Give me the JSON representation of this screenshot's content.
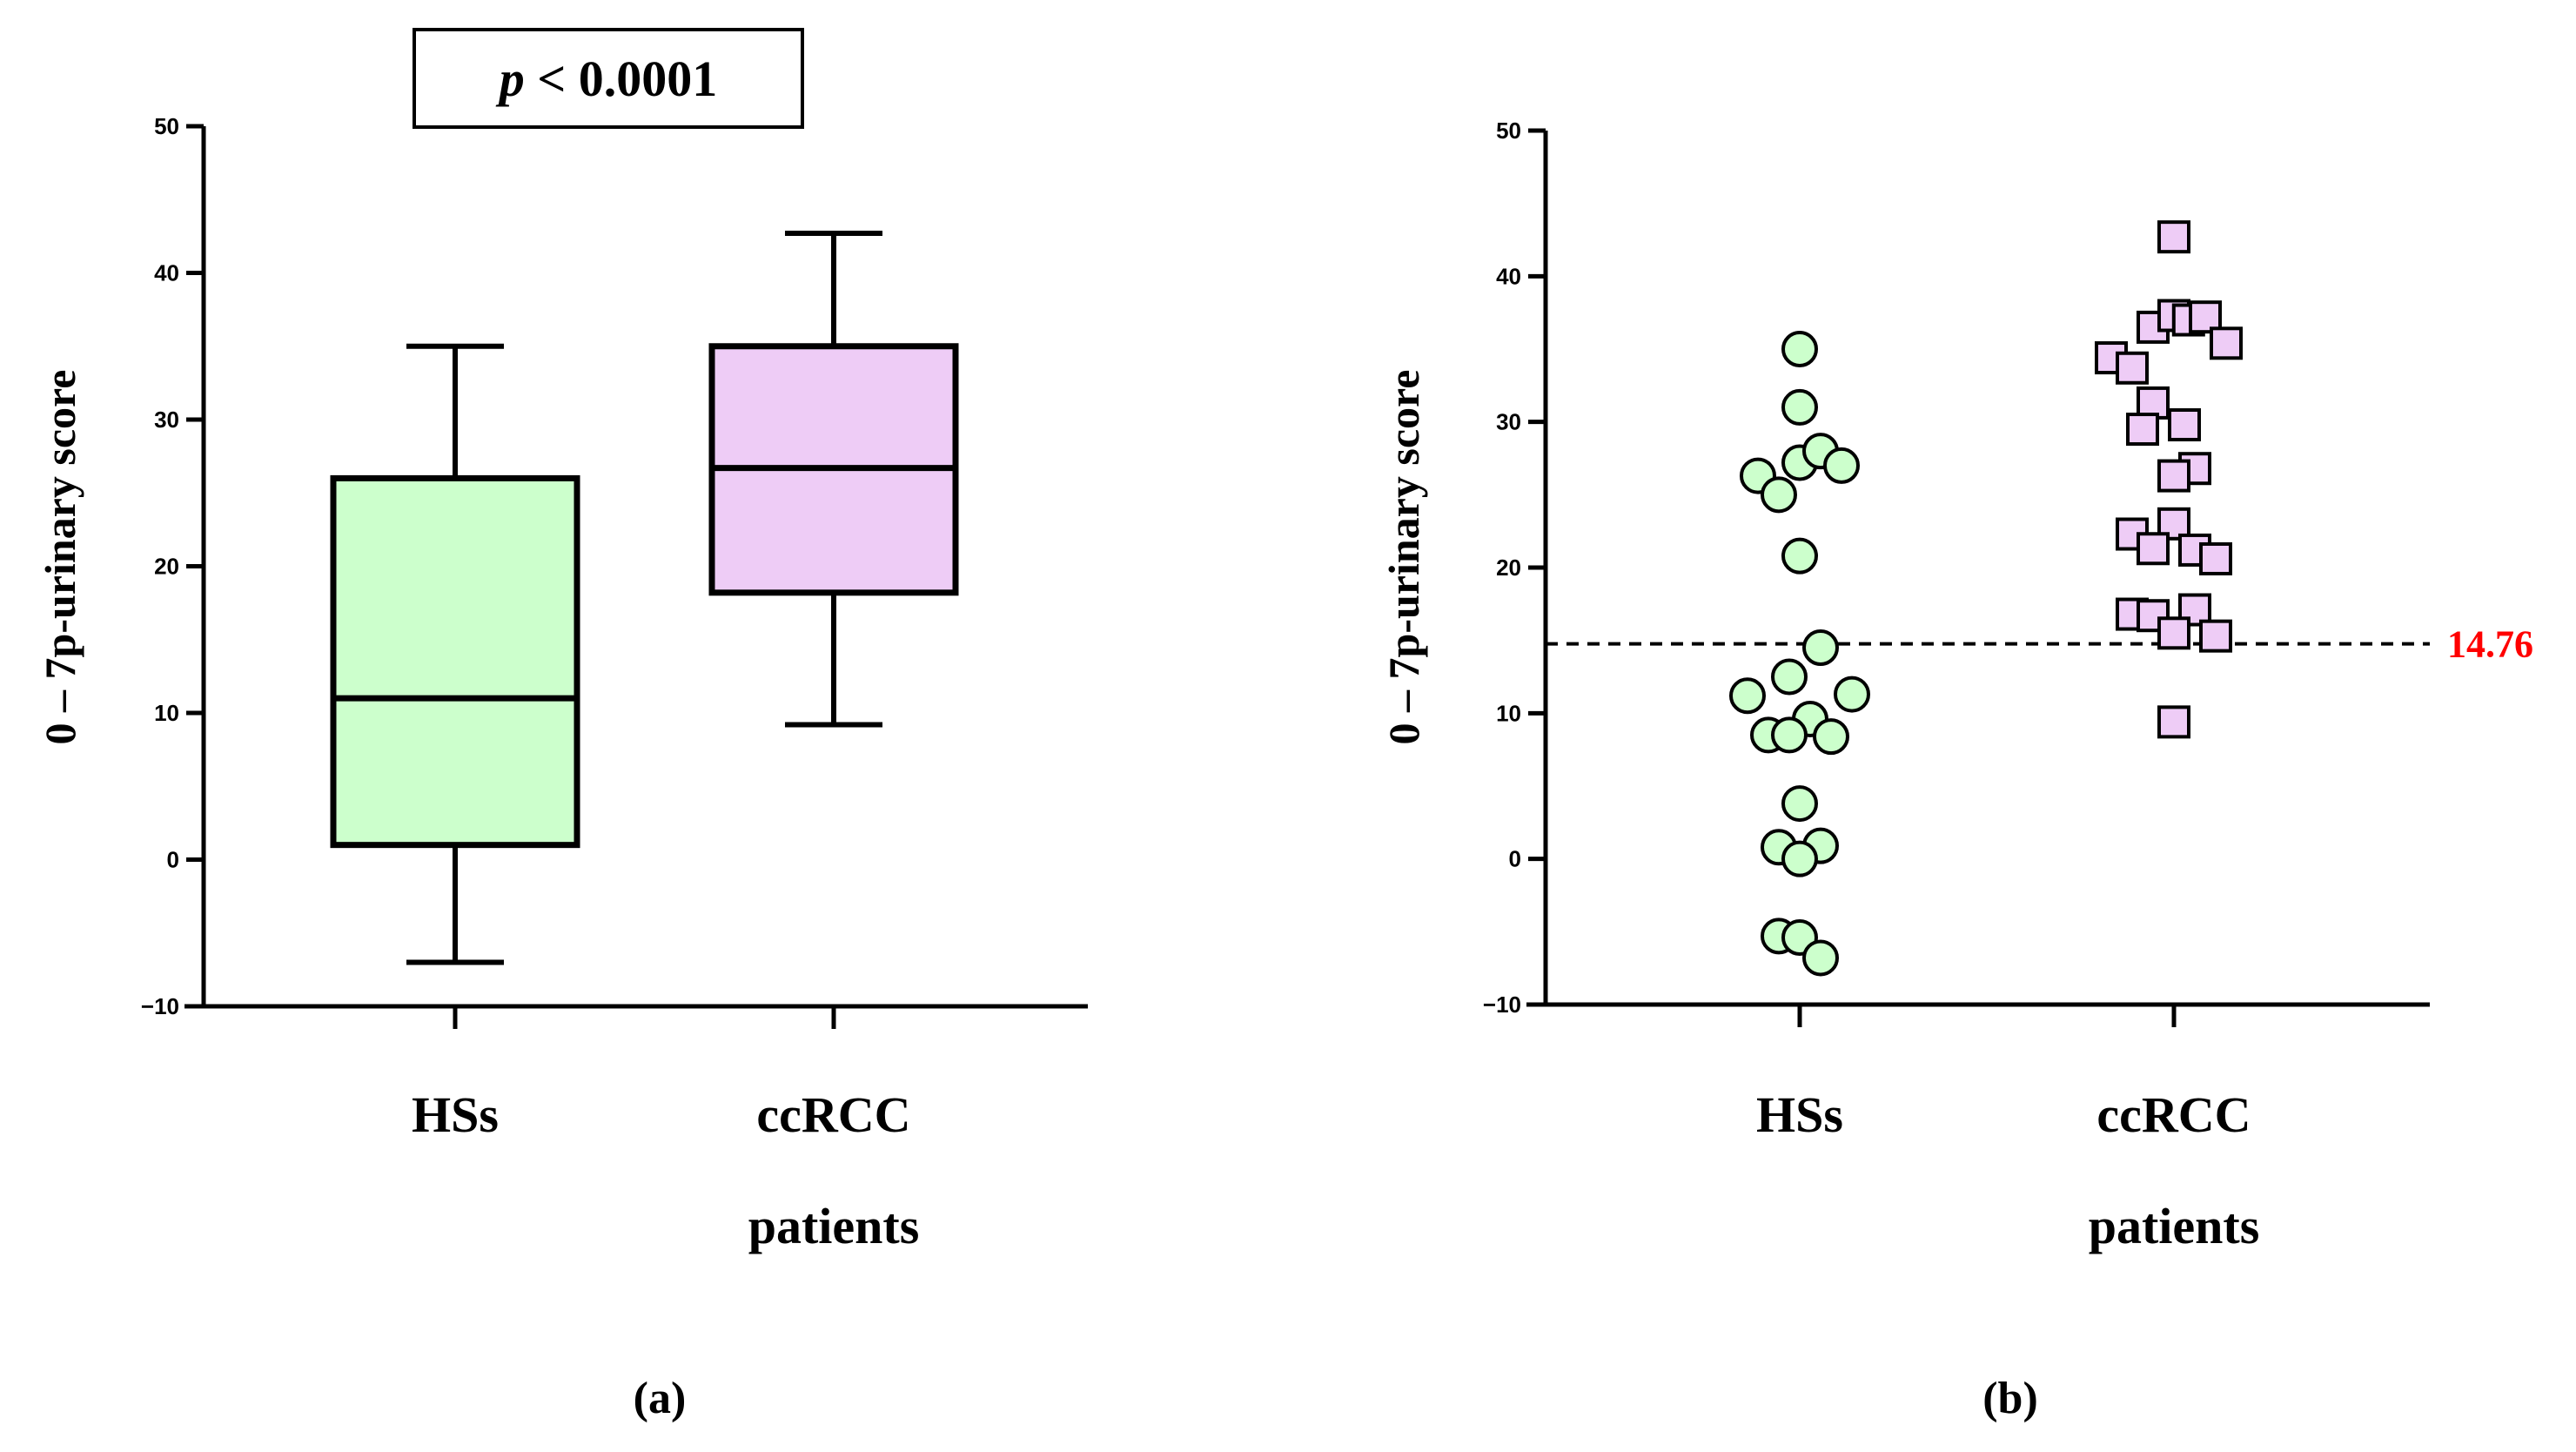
{
  "chart_data": [
    {
      "panel_label": "(a)",
      "type": "box",
      "title": "",
      "annotation": {
        "italic": "p",
        "rest": " < 0.0001"
      },
      "ylabel": "0 – 7p-urinary score",
      "xlabel": "",
      "ylim": [
        -10,
        50
      ],
      "yticks": [
        -10,
        0,
        10,
        20,
        30,
        40,
        50
      ],
      "ytick_labels": [
        "−10",
        "0",
        "10",
        "20",
        "30",
        "40",
        "50"
      ],
      "categories": [
        {
          "line1": "HSs",
          "line2": ""
        },
        {
          "line1": "ccRCC",
          "line2": "patients"
        }
      ],
      "boxes": [
        {
          "name": "HSs",
          "min": -7,
          "q1": 1,
          "median": 11,
          "q3": 26,
          "max": 35,
          "color": "#ccffcc"
        },
        {
          "name": "ccRCC patients",
          "min": 9.2,
          "q1": 18.2,
          "median": 26.7,
          "q3": 35,
          "max": 42.7,
          "color": "#eeccf6"
        }
      ]
    },
    {
      "panel_label": "(b)",
      "type": "scatter",
      "title": "",
      "ylabel": "0 – 7p-urinary score",
      "xlabel": "",
      "ylim": [
        -10,
        50
      ],
      "yticks": [
        -10,
        0,
        10,
        20,
        30,
        40,
        50
      ],
      "ytick_labels": [
        "−10",
        "0",
        "10",
        "20",
        "30",
        "40",
        "50"
      ],
      "categories": [
        {
          "line1": "HSs",
          "line2": ""
        },
        {
          "line1": "ccRCC",
          "line2": "patients"
        }
      ],
      "threshold": {
        "value": 14.76,
        "label": "14.76",
        "color": "#ff0000"
      },
      "series": [
        {
          "name": "HSs",
          "marker": "circle",
          "color": "#ccffcc",
          "points": [
            {
              "offset": 0,
              "y": 35
            },
            {
              "offset": 0,
              "y": 31
            },
            {
              "offset": -1.0,
              "y": 26.3
            },
            {
              "offset": -0.5,
              "y": 25
            },
            {
              "offset": 0,
              "y": 27.2
            },
            {
              "offset": 0.5,
              "y": 28
            },
            {
              "offset": 1.0,
              "y": 27
            },
            {
              "offset": 0,
              "y": 20.8
            },
            {
              "offset": 0.5,
              "y": 14.5
            },
            {
              "offset": -0.25,
              "y": 12.5
            },
            {
              "offset": -1.25,
              "y": 11.2
            },
            {
              "offset": 1.25,
              "y": 11.3
            },
            {
              "offset": 0.25,
              "y": 9.6
            },
            {
              "offset": -0.75,
              "y": 8.5
            },
            {
              "offset": -0.25,
              "y": 8.5
            },
            {
              "offset": 0.75,
              "y": 8.4
            },
            {
              "offset": 0,
              "y": 3.8
            },
            {
              "offset": -0.5,
              "y": 0.8
            },
            {
              "offset": 0.5,
              "y": 0.9
            },
            {
              "offset": 0,
              "y": 0
            },
            {
              "offset": -0.5,
              "y": -5.3
            },
            {
              "offset": 0,
              "y": -5.4
            },
            {
              "offset": 0.5,
              "y": -6.8
            }
          ]
        },
        {
          "name": "ccRCC patients",
          "marker": "square",
          "color": "#eeccf6",
          "points": [
            {
              "offset": 0,
              "y": 42.7
            },
            {
              "offset": -0.5,
              "y": 36.5
            },
            {
              "offset": 0,
              "y": 37.3
            },
            {
              "offset": 0.35,
              "y": 37
            },
            {
              "offset": 0.75,
              "y": 37.2
            },
            {
              "offset": 1.25,
              "y": 35.4
            },
            {
              "offset": -1.5,
              "y": 34.4
            },
            {
              "offset": -1.0,
              "y": 33.7
            },
            {
              "offset": -0.5,
              "y": 31.3
            },
            {
              "offset": -0.75,
              "y": 29.5
            },
            {
              "offset": 0.25,
              "y": 29.8
            },
            {
              "offset": 0.5,
              "y": 26.8
            },
            {
              "offset": 0,
              "y": 26.3
            },
            {
              "offset": 0,
              "y": 23
            },
            {
              "offset": -1.0,
              "y": 22.3
            },
            {
              "offset": -0.5,
              "y": 21.3
            },
            {
              "offset": 0.5,
              "y": 21.2
            },
            {
              "offset": 1.0,
              "y": 20.6
            },
            {
              "offset": -1.0,
              "y": 16.8
            },
            {
              "offset": -0.5,
              "y": 16.7
            },
            {
              "offset": 0.5,
              "y": 17.1
            },
            {
              "offset": 0,
              "y": 15.5
            },
            {
              "offset": 1.0,
              "y": 15.3
            },
            {
              "offset": 0,
              "y": 9.4
            }
          ]
        }
      ]
    }
  ]
}
